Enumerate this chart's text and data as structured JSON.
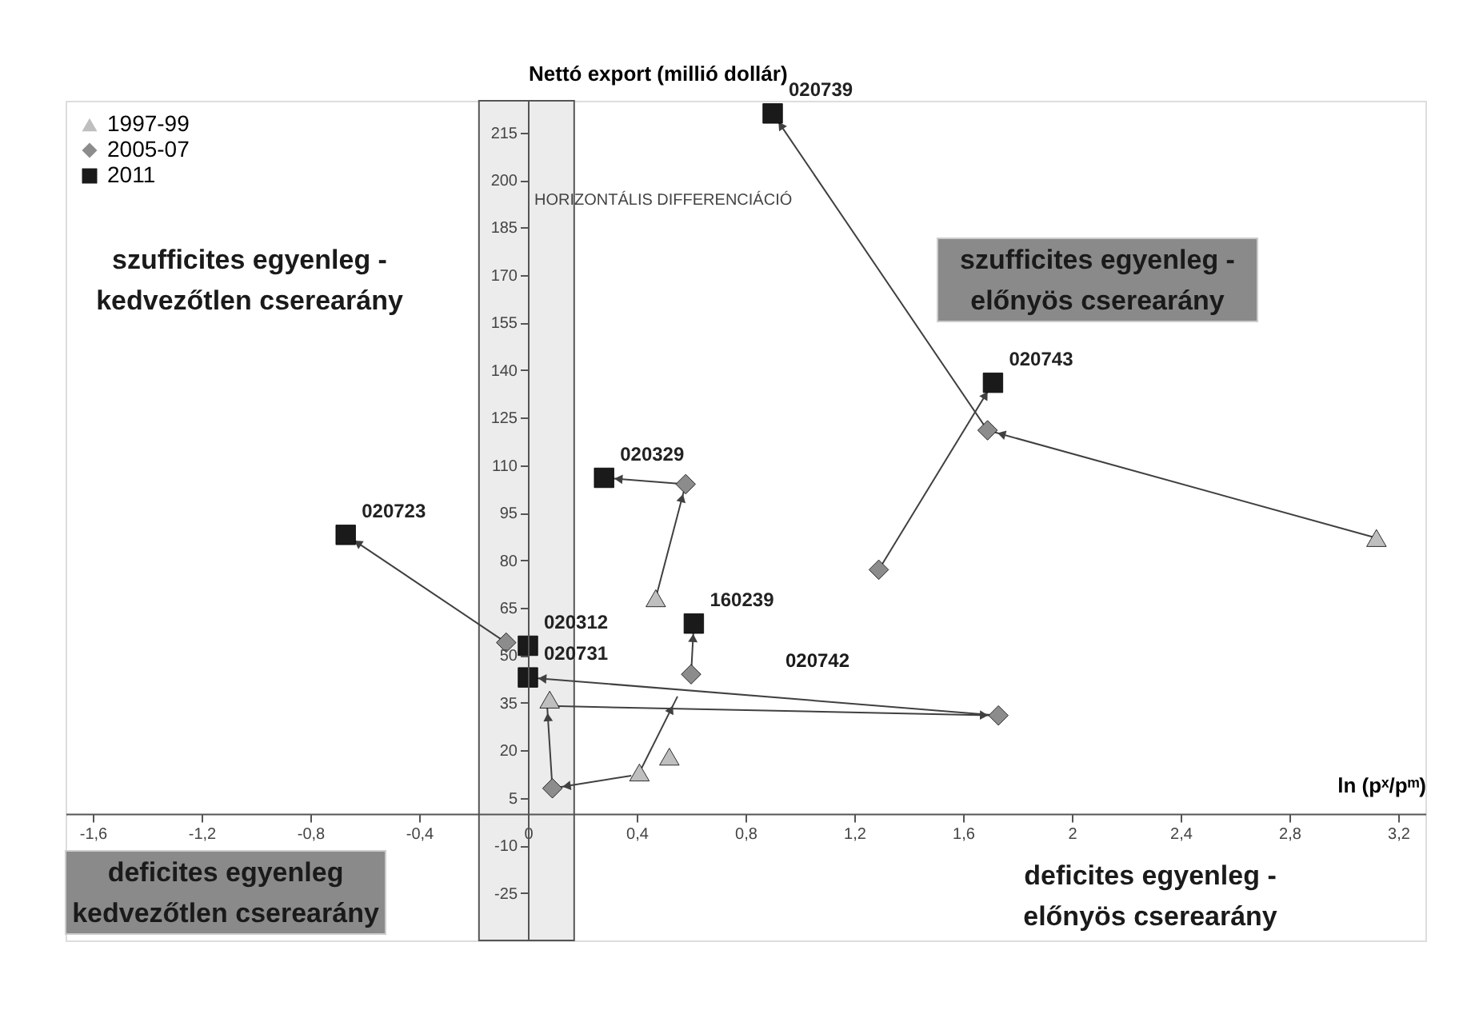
{
  "chart_data": {
    "type": "scatter",
    "xlabel": "ln (pˣ/pᵐ)",
    "ylabel": "Nettó export (millió dollár)",
    "xlim": [
      -1.7,
      3.3
    ],
    "ylim": [
      -40,
      225
    ],
    "xticks": [
      {
        "value": -1.6,
        "label": "-1,6"
      },
      {
        "value": -1.2,
        "label": "-1,2"
      },
      {
        "value": -0.8,
        "label": "-0,8"
      },
      {
        "value": -0.4,
        "label": "-0,4"
      },
      0,
      {
        "value": 0.4,
        "label": "0,4"
      },
      {
        "value": 0.8,
        "label": "0,8"
      },
      {
        "value": 1.2,
        "label": "1,2"
      },
      {
        "value": 1.6,
        "label": "1,6"
      },
      2,
      {
        "value": 2.4,
        "label": "2,4"
      },
      {
        "value": 2.8,
        "label": "2,8"
      },
      {
        "value": 3.2,
        "label": "3,2"
      }
    ],
    "yticks": [
      -25,
      -10,
      5,
      20,
      35,
      50,
      65,
      80,
      95,
      110,
      125,
      140,
      155,
      170,
      185,
      200,
      215
    ],
    "grid": false,
    "legend": "top left",
    "series": [
      {
        "name": "1997-99",
        "marker": "triangle",
        "color": "#bfbfbf",
        "x": [
          3.12,
          0.47,
          0.08,
          0.41,
          0.52
        ],
        "values": [
          87,
          68,
          36,
          13,
          18
        ]
      },
      {
        "name": "2005-07",
        "marker": "diamond",
        "color": "#8c8c8c",
        "x": [
          1.69,
          1.29,
          0.58,
          1.73,
          0.6,
          0.09,
          -0.08
        ],
        "values": [
          121,
          77,
          104,
          31,
          44,
          8,
          54
        ]
      },
      {
        "name": "2011",
        "marker": "square",
        "color": "#1a1a1a",
        "x": [
          0.9,
          1.71,
          0.28,
          0.61,
          -0.67,
          0.0,
          0.0
        ],
        "values": [
          221,
          136,
          106,
          60,
          88,
          53,
          43
        ]
      },
      {
        "type": "line",
        "marker": "none",
        "color": "#404040",
        "x": [
          3.12,
          1.69,
          0.9
        ],
        "values": [
          87,
          121,
          221
        ]
      },
      {
        "type": "line",
        "marker": "none",
        "color": "#404040",
        "x": [
          1.29,
          1.71
        ],
        "values": [
          77,
          136
        ]
      },
      {
        "type": "line",
        "marker": "none",
        "color": "#404040",
        "x": [
          0.47,
          0.58,
          0.28
        ],
        "values": [
          68,
          104,
          106
        ]
      },
      {
        "type": "line",
        "marker": "none",
        "color": "#404040",
        "x": [
          0.41,
          0.55
        ],
        "values": [
          13,
          37
        ]
      },
      {
        "type": "line",
        "marker": "none",
        "color": "#404040",
        "x": [
          0.6,
          0.61
        ],
        "values": [
          44,
          60
        ]
      },
      {
        "type": "line",
        "marker": "none",
        "color": "#404040",
        "x": [
          0.08,
          1.73,
          0.0
        ],
        "values": [
          34,
          31,
          43
        ]
      },
      {
        "type": "line",
        "marker": "none",
        "color": "#404040",
        "x": [
          0.38,
          0.09,
          0.07
        ],
        "values": [
          12,
          8,
          35
        ]
      },
      {
        "type": "line",
        "marker": "none",
        "color": "#404040",
        "x": [
          -0.08,
          -0.67
        ],
        "values": [
          54,
          88
        ]
      }
    ],
    "bands": [
      {
        "axis": "x",
        "from": -0.18,
        "to": 0.17,
        "label": "HORIZONTÁLIS DIFFERENCIÁCIÓ",
        "color": "#ececec"
      }
    ],
    "annotations": [
      "szufficites egyenleg -\nkedvezőtlen cserearány",
      "szufficites egyenleg -\nelőnyös cserearány",
      "deficites egyenleg\nkedvezőtlen cserearány",
      "deficites egyenleg -\nelőnyös cserearány",
      "020742",
      {
        "text": "020739",
        "x": 0.9,
        "y": 221
      },
      {
        "text": "020743",
        "x": 1.71,
        "y": 136
      },
      {
        "text": "020329",
        "x": 0.28,
        "y": 106
      },
      {
        "text": "160239",
        "x": 0.61,
        "y": 60
      },
      {
        "text": "020723",
        "x": -0.67,
        "y": 88
      },
      {
        "text": "020312",
        "x": 0.0,
        "y": 53
      },
      {
        "text": "020731",
        "x": 0.0,
        "y": 43
      }
    ]
  }
}
